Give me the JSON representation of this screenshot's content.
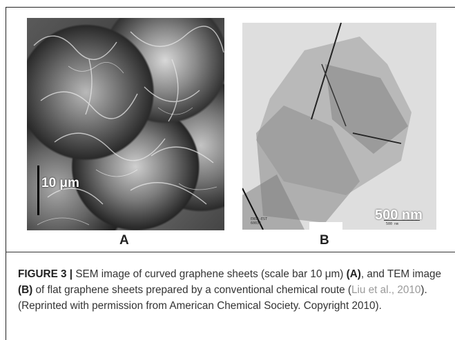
{
  "panels": {
    "a": {
      "scale_label": "10 μm",
      "label": "A"
    },
    "b": {
      "scale_label": "500 nm",
      "label": "B",
      "meta_left_1": "ENSA-EST",
      "meta_left_2": "60034",
      "meta_right": "500 nm"
    }
  },
  "caption": {
    "figure_number": "FIGURE 3 |",
    "text_1": " SEM image of curved graphene sheets (scale bar 10 μm) ",
    "ref_a": "(A)",
    "text_2": ", and TEM image ",
    "ref_b": "(B)",
    "text_3": " of flat graphene sheets prepared by a conventional chemical route (",
    "citation": "Liu et al., 2010",
    "text_4": "). (Reprinted with permission from American Chemical Society. Copyright 2010)."
  }
}
